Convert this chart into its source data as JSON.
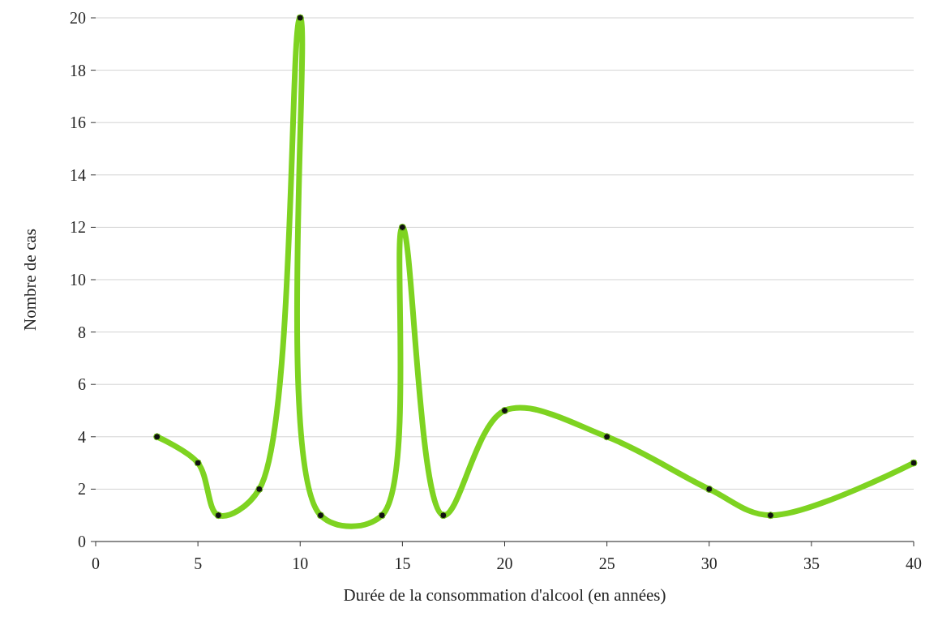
{
  "chart_data": {
    "type": "line",
    "xlabel": "Durée de la consommation d'alcool (en années)",
    "ylabel": "Nombre de cas",
    "x": [
      3,
      5,
      6,
      8,
      10,
      11,
      14,
      15,
      17,
      20,
      25,
      30,
      33,
      40
    ],
    "series": [
      {
        "color": "#7ed321",
        "values": [
          4,
          3,
          1,
          2,
          20,
          1,
          1,
          12,
          1,
          5,
          4,
          2,
          1,
          3
        ]
      }
    ],
    "xlim": [
      0,
      40
    ],
    "xticks": [
      0,
      5,
      10,
      15,
      20,
      25,
      30,
      35,
      40
    ],
    "ylim": [
      0,
      20
    ],
    "yticks": [
      0,
      2,
      4,
      6,
      8,
      10,
      12,
      14,
      16,
      18,
      20
    ],
    "grid": "y",
    "marker": "circle",
    "line_style": "solid"
  }
}
